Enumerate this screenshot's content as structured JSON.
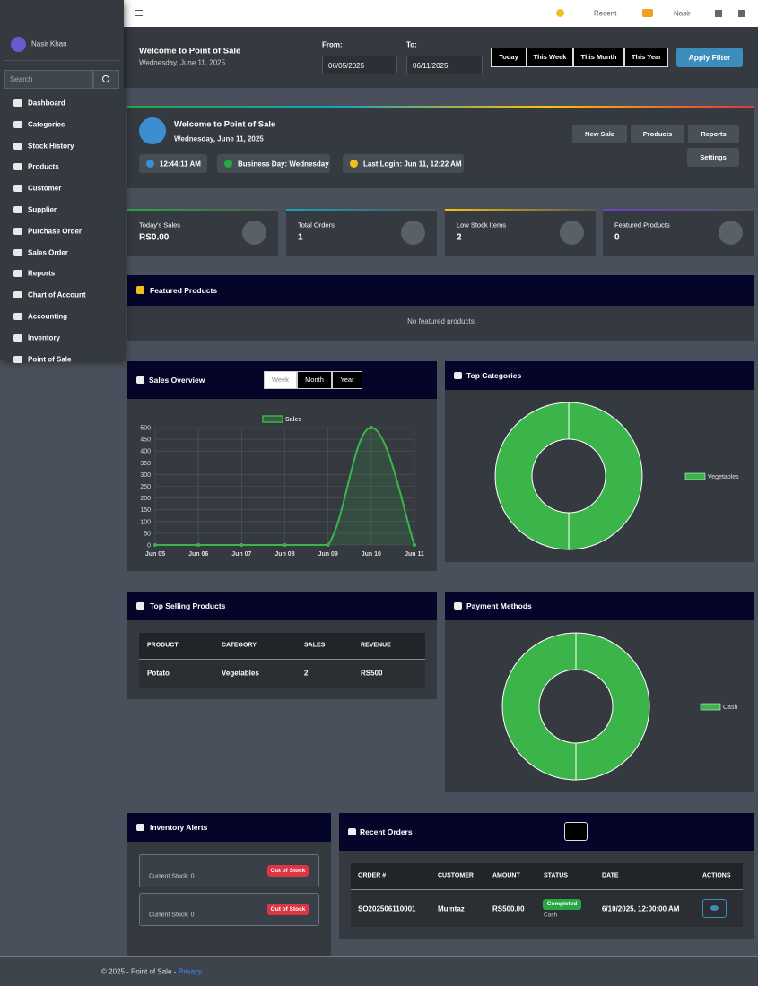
{
  "navbar": {
    "recent": "Recent",
    "user": "Nasir"
  },
  "sidebar": {
    "user": "Nasir Khan",
    "search": "Search",
    "menu": [
      "Dashboard",
      "Categories",
      "Stock History",
      "Products",
      "Customer",
      "Supplier",
      "Purchase Order",
      "Sales Order",
      "Reports",
      "Chart of Account",
      "Accounting",
      "Inventory",
      "Point of Sale"
    ]
  },
  "filter": {
    "title": "Welcome to Point of Sale",
    "date": "Wednesday, June 11, 2025",
    "from_label": "From:",
    "from": "06/05/2025",
    "to_label": "To:",
    "to": "06/11/2025",
    "ranges": [
      "Today",
      "This Week",
      "This Month",
      "This Year"
    ],
    "apply": "Apply Filter"
  },
  "welcome": {
    "title": "Welcome to Point of Sale",
    "date": "Wednesday, June 11, 2025",
    "buttons": [
      "New Sale",
      "Products",
      "Reports",
      "Settings"
    ],
    "time": "12:44:11 AM",
    "business_day": "Business Day: Wednesday",
    "last_login": "Last Login: Jun 11, 12:22 AM"
  },
  "stats": [
    {
      "label": "Today's Sales",
      "value": "RS0.00"
    },
    {
      "label": "Total Orders",
      "value": "1"
    },
    {
      "label": "Low Stock Items",
      "value": "2"
    },
    {
      "label": "Featured Products",
      "value": "0"
    }
  ],
  "featured": {
    "title": "Featured Products",
    "empty": "No featured products"
  },
  "sales_tabs": [
    "Week",
    "Month",
    "Year"
  ],
  "chart_data": [
    {
      "type": "line",
      "title": "Sales Overview",
      "categories": [
        "Jun 05",
        "Jun 06",
        "Jun 07",
        "Jun 08",
        "Jun 09",
        "Jun 10",
        "Jun 11"
      ],
      "series": [
        {
          "name": "Sales",
          "color": "#3bb54a",
          "values": [
            0,
            0,
            0,
            0,
            0,
            500,
            0
          ]
        }
      ],
      "ylim": [
        0,
        500
      ],
      "yticks": [
        0,
        50,
        100,
        150,
        200,
        250,
        300,
        350,
        400,
        450,
        500
      ],
      "grid": true,
      "legend": "top"
    },
    {
      "type": "doughnut",
      "title": "Top Categories",
      "categories": [
        "Vegetables"
      ],
      "values": [
        100
      ],
      "colors": [
        "#3bb54a"
      ],
      "legend": "right"
    },
    {
      "type": "doughnut",
      "title": "Payment Methods",
      "categories": [
        "Cash"
      ],
      "values": [
        100
      ],
      "colors": [
        "#3bb54a"
      ],
      "legend": "right"
    }
  ],
  "top_selling": {
    "title": "Top Selling Products",
    "columns": [
      "PRODUCT",
      "CATEGORY",
      "SALES",
      "REVENUE"
    ],
    "rows": [
      [
        "Potato",
        "Vegetables",
        "2",
        "RS500"
      ]
    ]
  },
  "inventory": {
    "title": "Inventory Alerts",
    "items": [
      {
        "stock": "Current Stock: 0",
        "badge": "Out of Stock"
      },
      {
        "stock": "Current Stock: 0",
        "badge": "Out of Stock"
      }
    ]
  },
  "orders": {
    "title": "Recent Orders",
    "columns": [
      "ORDER #",
      "CUSTOMER",
      "AMOUNT",
      "STATUS",
      "DATE",
      "ACTIONS"
    ],
    "rows": [
      {
        "order": "SO202506110001",
        "customer": "Mumtaz",
        "amount": "RS500.00",
        "status": "Completed",
        "method": "Cash",
        "date": "6/10/2025, 12:00:00 AM"
      }
    ]
  },
  "footer": {
    "text": "© 2025 - Point of Sale - ",
    "link": "Privacy"
  }
}
